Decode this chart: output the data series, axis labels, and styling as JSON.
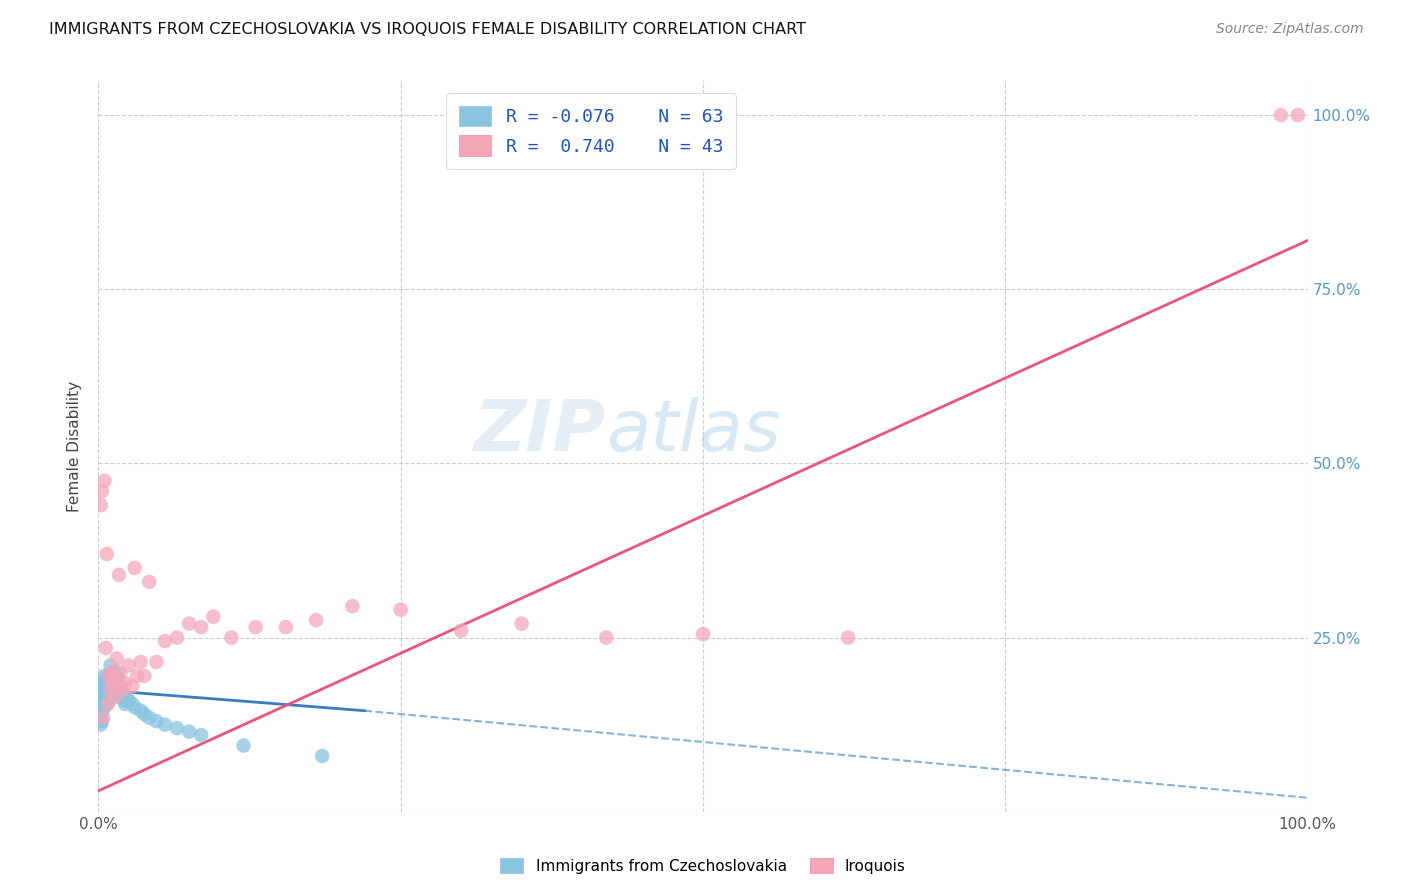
{
  "title": "IMMIGRANTS FROM CZECHOSLOVAKIA VS IROQUOIS FEMALE DISABILITY CORRELATION CHART",
  "source": "Source: ZipAtlas.com",
  "ylabel": "Female Disability",
  "watermark": "ZIPatlas",
  "color_blue": "#89c4e1",
  "color_pink": "#f4a7b9",
  "color_blue_line": "#3a7ebf",
  "color_pink_line": "#e8567a",
  "scatter_blue": {
    "x": [
      0.001,
      0.001,
      0.001,
      0.002,
      0.002,
      0.002,
      0.002,
      0.003,
      0.003,
      0.003,
      0.003,
      0.004,
      0.004,
      0.004,
      0.005,
      0.005,
      0.005,
      0.005,
      0.006,
      0.006,
      0.006,
      0.007,
      0.007,
      0.007,
      0.008,
      0.008,
      0.008,
      0.009,
      0.009,
      0.01,
      0.01,
      0.01,
      0.011,
      0.011,
      0.012,
      0.012,
      0.013,
      0.013,
      0.014,
      0.015,
      0.015,
      0.016,
      0.016,
      0.017,
      0.018,
      0.019,
      0.02,
      0.021,
      0.022,
      0.023,
      0.025,
      0.028,
      0.03,
      0.035,
      0.038,
      0.042,
      0.048,
      0.055,
      0.065,
      0.075,
      0.085,
      0.12,
      0.185
    ],
    "y": [
      0.16,
      0.145,
      0.13,
      0.165,
      0.15,
      0.14,
      0.125,
      0.175,
      0.16,
      0.145,
      0.13,
      0.185,
      0.17,
      0.155,
      0.195,
      0.18,
      0.165,
      0.15,
      0.19,
      0.175,
      0.16,
      0.185,
      0.17,
      0.155,
      0.195,
      0.18,
      0.165,
      0.175,
      0.16,
      0.21,
      0.19,
      0.17,
      0.185,
      0.165,
      0.2,
      0.18,
      0.195,
      0.175,
      0.185,
      0.2,
      0.18,
      0.19,
      0.17,
      0.18,
      0.175,
      0.17,
      0.165,
      0.16,
      0.155,
      0.165,
      0.16,
      0.155,
      0.15,
      0.145,
      0.14,
      0.135,
      0.13,
      0.125,
      0.12,
      0.115,
      0.11,
      0.095,
      0.08
    ]
  },
  "scatter_pink": {
    "x": [
      0.002,
      0.003,
      0.004,
      0.005,
      0.006,
      0.007,
      0.008,
      0.009,
      0.01,
      0.011,
      0.012,
      0.013,
      0.014,
      0.015,
      0.016,
      0.017,
      0.018,
      0.02,
      0.022,
      0.025,
      0.028,
      0.03,
      0.032,
      0.035,
      0.038,
      0.042,
      0.048,
      0.055,
      0.065,
      0.075,
      0.085,
      0.095,
      0.11,
      0.13,
      0.155,
      0.18,
      0.21,
      0.25,
      0.3,
      0.35,
      0.42,
      0.5,
      0.62
    ],
    "y": [
      0.44,
      0.46,
      0.135,
      0.475,
      0.235,
      0.37,
      0.155,
      0.195,
      0.175,
      0.2,
      0.185,
      0.195,
      0.165,
      0.22,
      0.185,
      0.34,
      0.2,
      0.175,
      0.185,
      0.21,
      0.18,
      0.35,
      0.195,
      0.215,
      0.195,
      0.33,
      0.215,
      0.245,
      0.25,
      0.27,
      0.265,
      0.28,
      0.25,
      0.265,
      0.265,
      0.275,
      0.295,
      0.29,
      0.26,
      0.27,
      0.25,
      0.255,
      0.25
    ]
  },
  "pink_dots_top": {
    "x": [
      0.978,
      0.992
    ],
    "y": [
      1.0,
      1.0
    ]
  },
  "blue_line_solid": {
    "x0": 0.0,
    "x1": 0.22,
    "y0": 0.175,
    "y1": 0.145
  },
  "blue_line_dashed": {
    "x0": 0.22,
    "x1": 1.0,
    "y0": 0.145,
    "y1": 0.02
  },
  "pink_line": {
    "x0": 0.0,
    "x1": 1.0,
    "y0": 0.03,
    "y1": 0.82
  },
  "xlim": [
    0.0,
    1.0
  ],
  "ylim": [
    0.0,
    1.05
  ]
}
